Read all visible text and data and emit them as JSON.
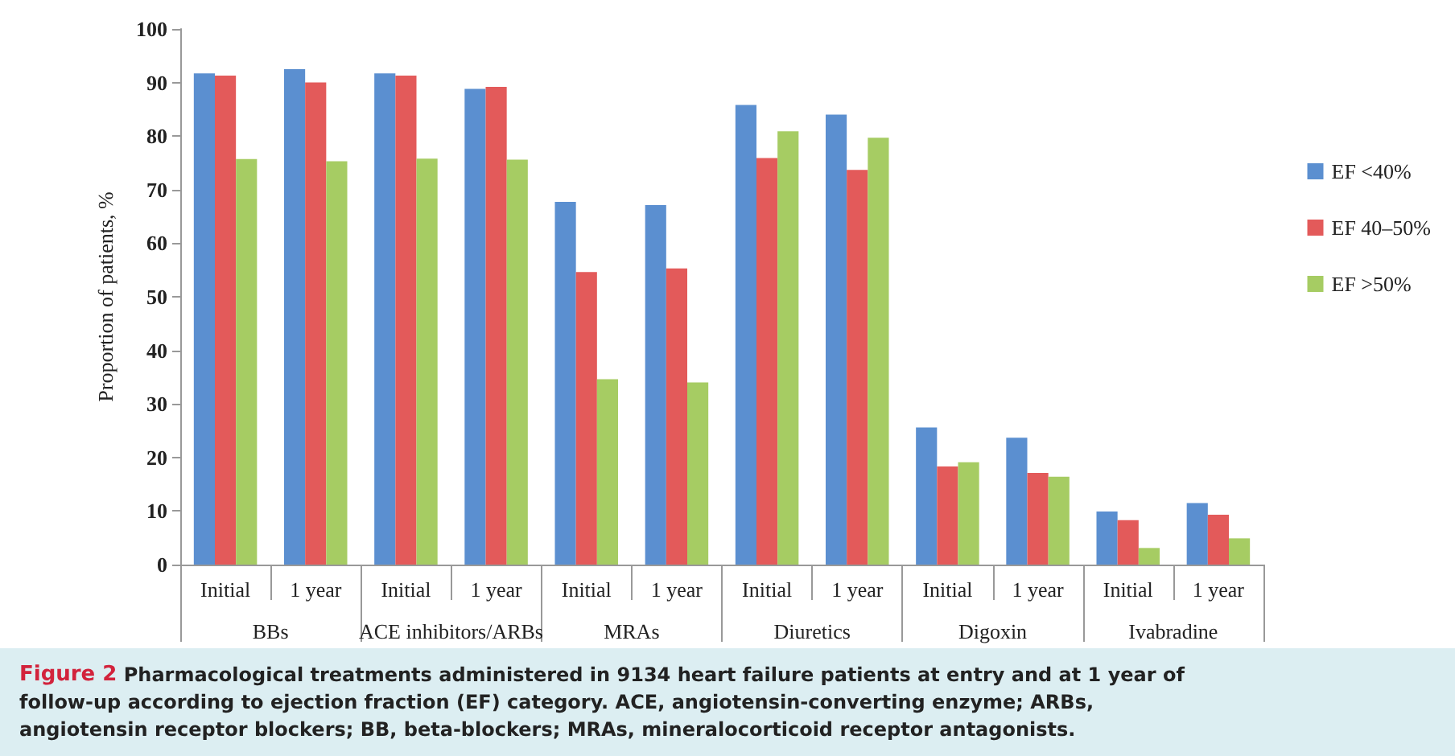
{
  "chart_data": {
    "type": "bar",
    "title": "Figure 2 Pharmacological treatments administered in 9134 heart failure patients at entry and at 1 year of follow-up according to ejection fraction (EF) category. ACE, angiotensin-converting enzyme; ARBs, angiotensin receptor blockers; BB, beta-blockers; MRAs, mineralocorticoid receptor antagonists.",
    "ylabel": "Proportion of patients, %",
    "categories": [
      "Initial",
      "1 year",
      "Initial",
      "1 year",
      "Initial",
      "1 year",
      "Initial",
      "1 year",
      "Initial",
      "1 year",
      "Initial",
      "1 year"
    ],
    "annotations": [
      "BBs",
      "ACE inhibitors/ARBs",
      "MRAs",
      "Diuretics",
      "Digoxin",
      "Ivabradine"
    ],
    "series": [
      {
        "name": "EF <40%",
        "color": "#5b8fd0",
        "values": [
          91.7,
          92.5,
          91.7,
          88.8,
          67.7,
          67.1,
          85.8,
          84.0,
          25.6,
          23.7,
          9.9,
          11.5
        ]
      },
      {
        "name": "EF 40–50%",
        "color": "#e35a5a",
        "values": [
          91.3,
          90.0,
          91.3,
          89.2,
          54.6,
          55.3,
          75.9,
          73.7,
          18.3,
          17.1,
          8.3,
          9.3
        ]
      },
      {
        "name": "EF >50%",
        "color": "#a6cc63",
        "values": [
          75.7,
          75.3,
          75.8,
          75.6,
          34.6,
          34.0,
          80.9,
          79.7,
          19.1,
          16.4,
          3.1,
          4.9
        ]
      }
    ],
    "ylim": [
      0,
      100
    ],
    "yticks": [
      0,
      10,
      20,
      30,
      40,
      50,
      60,
      70,
      80,
      90,
      100
    ],
    "grid": false,
    "legend": "right"
  }
}
